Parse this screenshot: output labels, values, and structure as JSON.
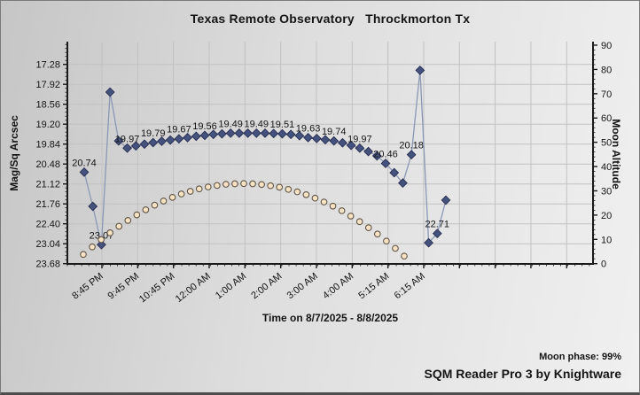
{
  "title": "Texas Remote Observatory   Throckmorton Tx",
  "footer": {
    "moon_phase": "Moon phase: 99%",
    "app_name": "SQM Reader Pro 3 by Knightware"
  },
  "chart_data": {
    "type": "line",
    "title": "Texas Remote Observatory   Throckmorton Tx",
    "grid": true,
    "x_axis": {
      "title": "Time on 8/7/2025 - 8/8/2025",
      "tick_labels": [
        "8:45 PM",
        "9:45 PM",
        "10:45 PM",
        "12:00 AM",
        "1:00 AM",
        "2:00 AM",
        "3:00 AM",
        "4:00 AM",
        "5:15 AM",
        "6:15 AM"
      ]
    },
    "y_left": {
      "label": "Mag/Sq Arcsec",
      "inverted": true,
      "tick_labels": [
        "17.28",
        "17.92",
        "18.56",
        "19.20",
        "19.84",
        "20.48",
        "21.12",
        "21.76",
        "22.40",
        "23.04",
        "23.68"
      ],
      "range": [
        17.28,
        23.68
      ]
    },
    "y_right": {
      "label": "Moon Altitude",
      "tick_labels": [
        "90",
        "80",
        "70",
        "60",
        "50",
        "40",
        "30",
        "20",
        "10",
        "0"
      ],
      "range": [
        0,
        90
      ]
    },
    "series": [
      {
        "name": "SQM reading (Mag/Sq Arcsec)",
        "axis": "left",
        "marker": "diamond",
        "marker_color": "#46527e",
        "marker_stroke": "#20284a",
        "line_color": "#8b97b5",
        "values": [
          20.74,
          21.84,
          23.07,
          18.17,
          19.74,
          19.97,
          19.9,
          19.84,
          19.79,
          19.75,
          19.71,
          19.67,
          19.63,
          19.59,
          19.56,
          19.53,
          19.51,
          19.49,
          19.49,
          19.49,
          19.49,
          19.49,
          19.5,
          19.51,
          19.53,
          19.57,
          19.63,
          19.66,
          19.7,
          19.74,
          19.8,
          19.88,
          19.97,
          20.08,
          20.22,
          20.46,
          20.76,
          21.09,
          20.18,
          17.47,
          23.01,
          22.71,
          21.64
        ],
        "point_labels": [
          {
            "index": 0,
            "text": "20.74"
          },
          {
            "index": 2,
            "text": "23.07"
          },
          {
            "index": 5,
            "text": "19.97"
          },
          {
            "index": 8,
            "text": "19.79"
          },
          {
            "index": 11,
            "text": "19.67"
          },
          {
            "index": 14,
            "text": "19.56"
          },
          {
            "index": 17,
            "text": "19.49"
          },
          {
            "index": 20,
            "text": "19.49"
          },
          {
            "index": 23,
            "text": "19.51"
          },
          {
            "index": 26,
            "text": "19.63"
          },
          {
            "index": 29,
            "text": "19.74"
          },
          {
            "index": 32,
            "text": "19.97"
          },
          {
            "index": 35,
            "text": "20.46"
          },
          {
            "index": 38,
            "text": "20.18"
          },
          {
            "index": 41,
            "text": "22.71"
          }
        ]
      },
      {
        "name": "Moon altitude (deg)",
        "axis": "right",
        "marker": "circle",
        "marker_color": "#f8e3c2",
        "marker_stroke": "#5f554a",
        "values": [
          3.8,
          6.9,
          9.9,
          12.7,
          15.4,
          17.8,
          20.1,
          22.2,
          24.1,
          25.8,
          27.3,
          28.7,
          29.8,
          30.8,
          31.6,
          32.2,
          32.7,
          32.9,
          33.0,
          32.9,
          32.6,
          32.1,
          31.5,
          30.6,
          29.6,
          28.4,
          27.0,
          25.4,
          23.7,
          21.8,
          19.6,
          17.3,
          14.8,
          12.2,
          9.3,
          6.3,
          3.1
        ]
      }
    ],
    "colors": {
      "axis": "#1a1a1a",
      "gridline": "#c2c2c2",
      "text": "#141414"
    }
  }
}
